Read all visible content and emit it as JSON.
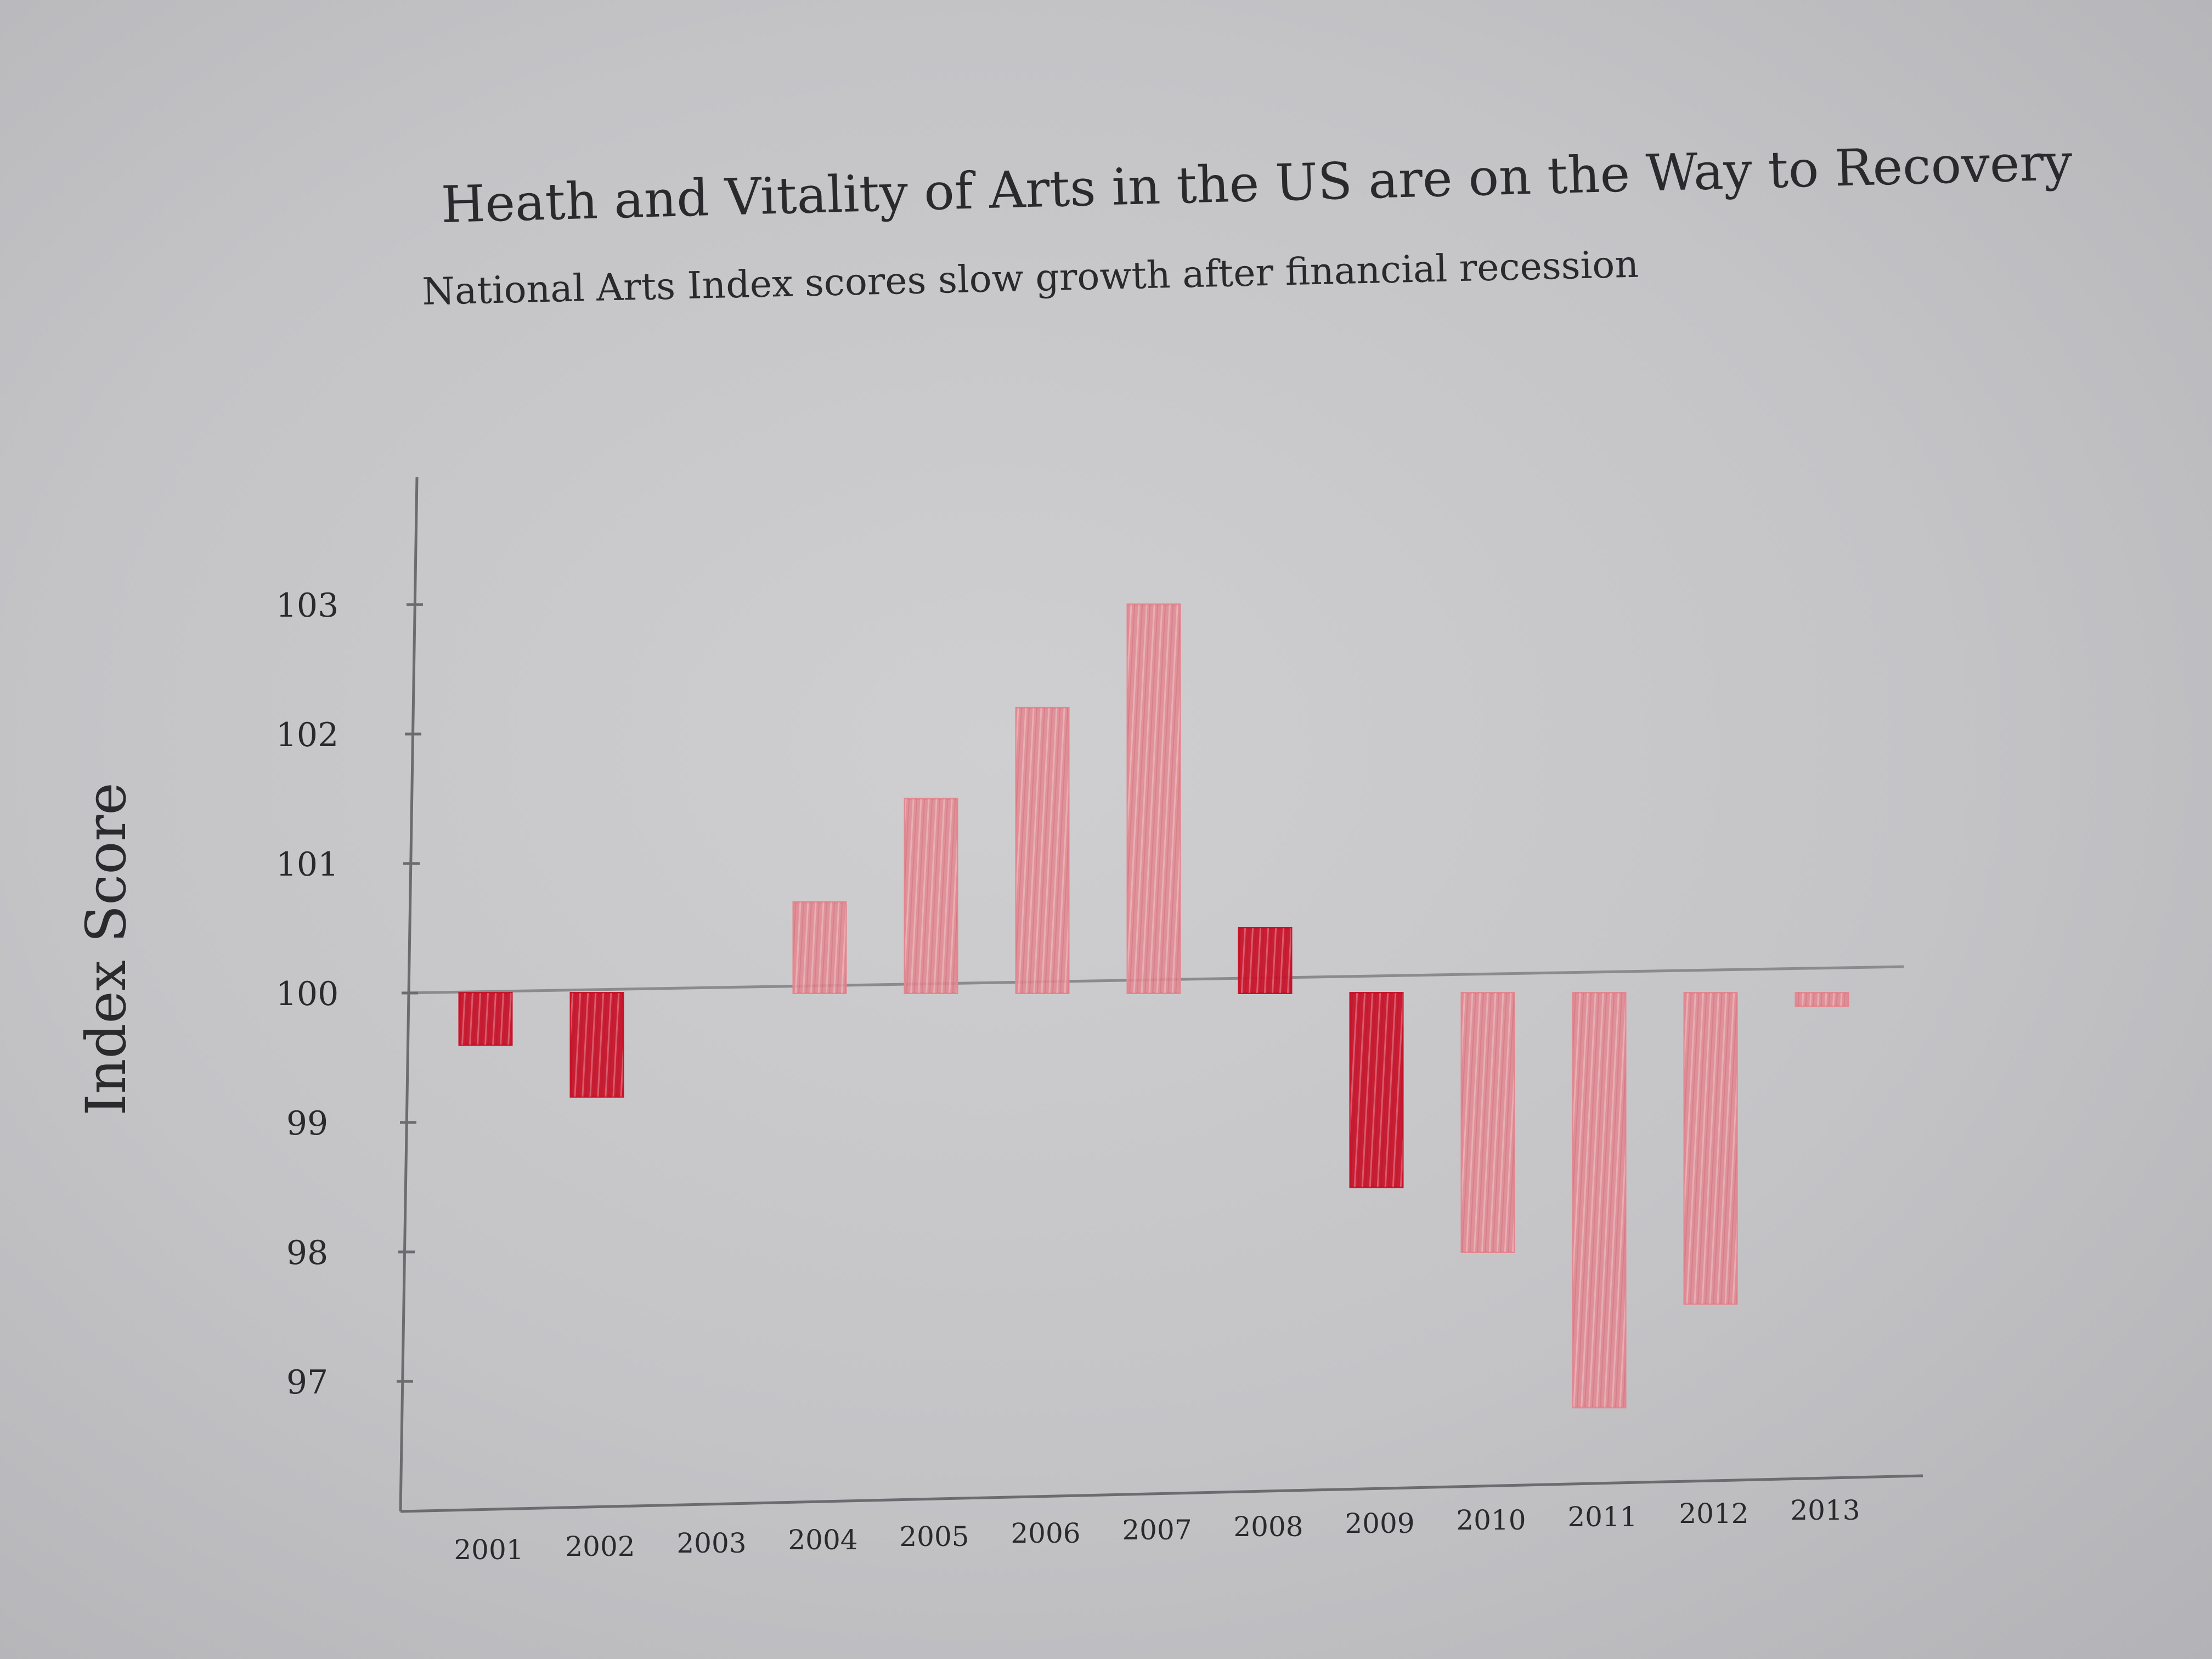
{
  "chart_data": {
    "type": "bar",
    "title": "Heath and Vitality of Arts in the US are on the Way to Recovery",
    "subtitle": "National Arts Index scores slow growth after financial recession",
    "ylabel": "Index Score",
    "xlabel": "",
    "baseline": 100,
    "ylim": [
      96.1,
      103.9
    ],
    "yticks": [
      97,
      98,
      99,
      100,
      101,
      102,
      103
    ],
    "ytick_labels": [
      "97",
      "98",
      "99",
      "100",
      "101",
      "102",
      "103"
    ],
    "categories": [
      "2001",
      "2002",
      "2003",
      "2004",
      "2005",
      "2006",
      "2007",
      "2008",
      "2009",
      "2010",
      "2011",
      "2012",
      "2013"
    ],
    "values": [
      99.6,
      99.2,
      100.0,
      100.7,
      101.5,
      102.2,
      103.0,
      100.5,
      98.5,
      98.0,
      96.8,
      97.6,
      99.9
    ],
    "grid": false,
    "colors": {
      "emphasis": "#c8142a",
      "muted": "#e3868f",
      "axis": "#6b6b70",
      "ink": "#2a2a2e"
    },
    "emphasis_categories": [
      "2001",
      "2002",
      "2008",
      "2009"
    ]
  }
}
